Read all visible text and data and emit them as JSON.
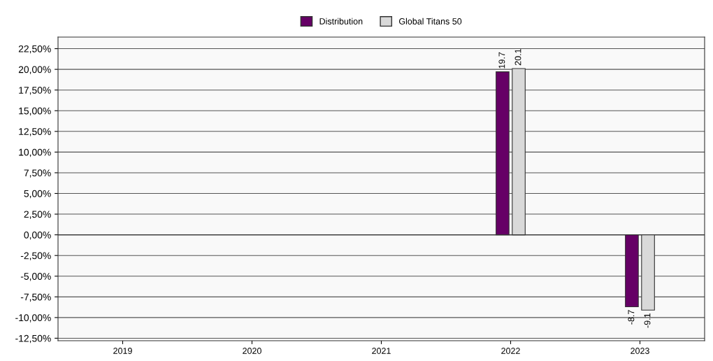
{
  "chart_data": {
    "type": "bar",
    "categories": [
      "2019",
      "2020",
      "2021",
      "2022",
      "2023"
    ],
    "series": [
      {
        "name": "Distribution",
        "color": "#660066",
        "values": [
          null,
          null,
          null,
          19.7,
          -8.7
        ]
      },
      {
        "name": "Global Titans 50",
        "color": "#d9d9d9",
        "values": [
          null,
          null,
          null,
          20.1,
          -9.1
        ]
      }
    ],
    "ylim": [
      -12.8,
      23.9
    ],
    "yticks": [
      {
        "value": -12.5,
        "label": "-12,50%"
      },
      {
        "value": -10,
        "label": "-10,00%"
      },
      {
        "value": -7.5,
        "label": "-7,50%"
      },
      {
        "value": -5,
        "label": "-5,00%"
      },
      {
        "value": -2.5,
        "label": "-2,50%"
      },
      {
        "value": 0,
        "label": "0,00%"
      },
      {
        "value": 2.5,
        "label": "2,50%"
      },
      {
        "value": 5,
        "label": "5,00%"
      },
      {
        "value": 7.5,
        "label": "7,50%"
      },
      {
        "value": 10,
        "label": "10,00%"
      },
      {
        "value": 12.5,
        "label": "12,50%"
      },
      {
        "value": 15,
        "label": "15,00%"
      },
      {
        "value": 17.5,
        "label": "17,50%"
      },
      {
        "value": 20,
        "label": "20,00%"
      },
      {
        "value": 22.5,
        "label": "22,50%"
      }
    ],
    "grid": "y",
    "legend": "top",
    "data_labels": true
  }
}
